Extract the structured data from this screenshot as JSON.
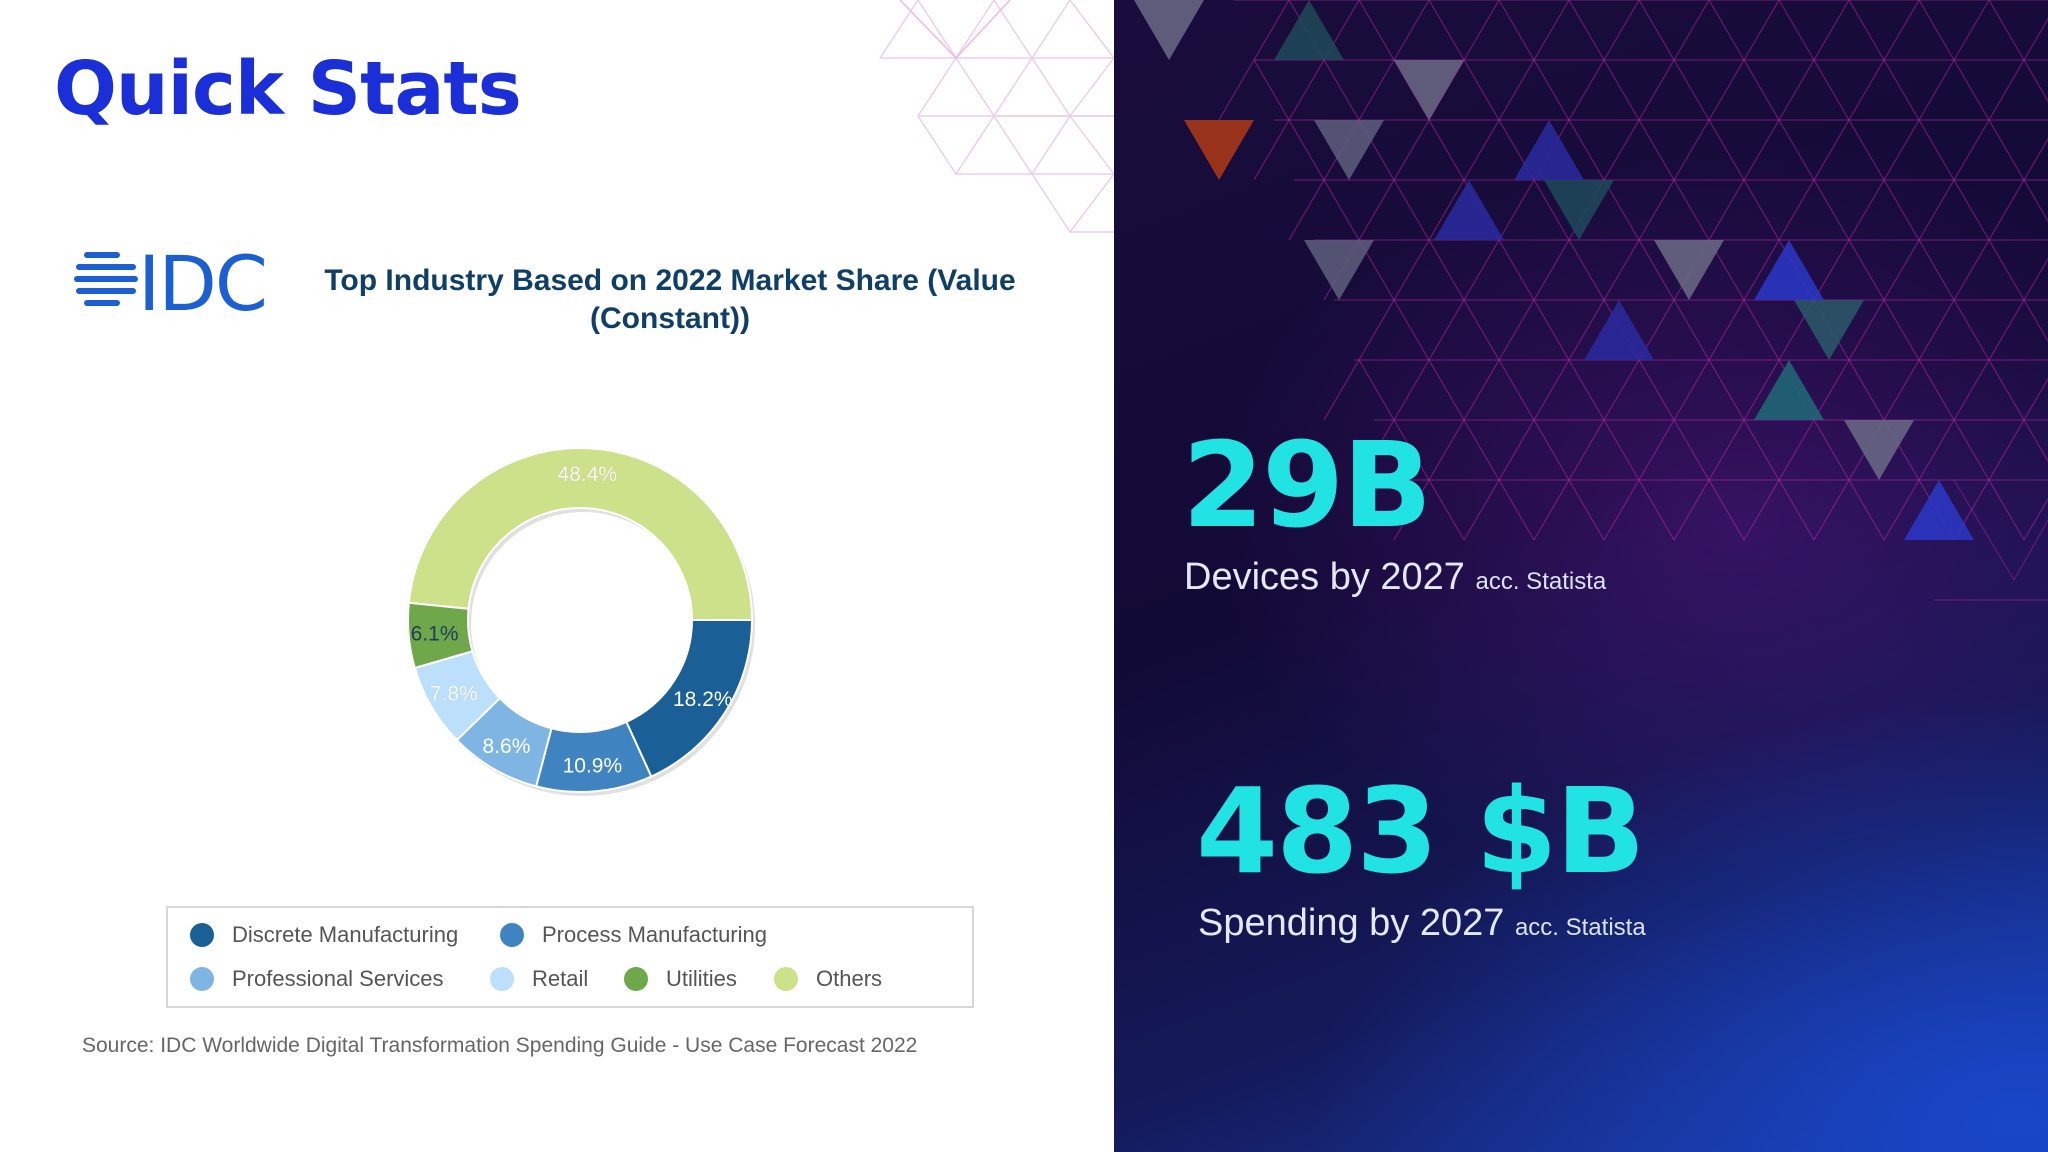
{
  "slide": {
    "title": "Quick Stats"
  },
  "logo": {
    "text": "IDC",
    "color": "#1b5fd1"
  },
  "chart_data": {
    "type": "pie",
    "donut": true,
    "title": "Top Industry Based on 2022 Market Share (Value (Constant))",
    "legend_position": "bottom",
    "slices": [
      {
        "name": "Discrete Manufacturing",
        "value": 18.2,
        "label": "18.2%",
        "color": "#1a5f96"
      },
      {
        "name": "Process Manufacturing",
        "value": 10.9,
        "label": "10.9%",
        "color": "#3f84c0"
      },
      {
        "name": "Professional Services",
        "value": 8.6,
        "label": "8.6%",
        "color": "#7fb5e2"
      },
      {
        "name": "Retail",
        "value": 7.8,
        "label": "7.8%",
        "color": "#bcdffb"
      },
      {
        "name": "Utilities",
        "value": 6.1,
        "label": "6.1%",
        "color": "#6fa84a"
      },
      {
        "name": "Others",
        "value": 48.4,
        "label": "48.4%",
        "color": "#cde08a"
      }
    ],
    "source": "Source: IDC Worldwide Digital Transformation Spending Guide - Use Case Forecast 2022"
  },
  "stats": [
    {
      "value": "29B",
      "caption": "Devices by 2027",
      "source": "acc. Statista"
    },
    {
      "value": "483 $B",
      "caption": "Spending by 2027",
      "source": "acc. Statista"
    }
  ],
  "colors": {
    "title_blue": "#1b2fd8",
    "stat_cyan": "#22e3e3"
  }
}
